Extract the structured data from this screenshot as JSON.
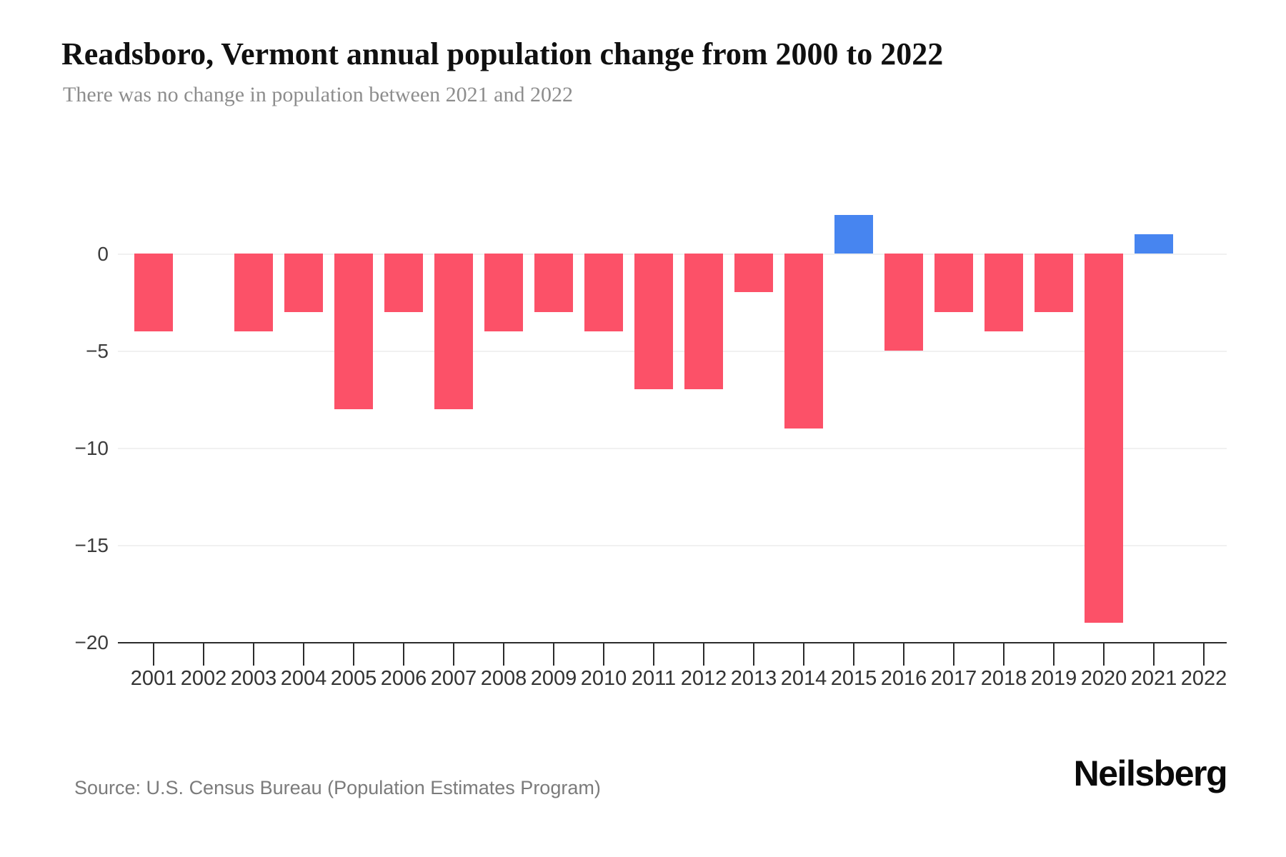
{
  "header": {
    "title": "Readsboro, Vermont annual population change from 2000 to 2022",
    "subtitle": "There was no change in population between 2021 and 2022"
  },
  "chart_data": {
    "type": "bar",
    "title": "Readsboro, Vermont annual population change from 2000 to 2022",
    "subtitle": "There was no change in population between 2021 and 2022",
    "categories": [
      "2001",
      "2002",
      "2003",
      "2004",
      "2005",
      "2006",
      "2007",
      "2008",
      "2009",
      "2010",
      "2011",
      "2012",
      "2013",
      "2014",
      "2015",
      "2016",
      "2017",
      "2018",
      "2019",
      "2020",
      "2021",
      "2022"
    ],
    "values": [
      -4,
      0,
      -4,
      -3,
      -8,
      -3,
      -8,
      -4,
      -3,
      -4,
      -7,
      -7,
      -2,
      -9,
      2,
      -5,
      -3,
      -4,
      -3,
      -19,
      1,
      0
    ],
    "xlabel": "",
    "ylabel": "",
    "ylim": [
      -20,
      3
    ],
    "yticks": [
      0,
      -5,
      -10,
      -15,
      -20
    ],
    "ytick_labels": [
      "0",
      "−5",
      "−10",
      "−15",
      "−20"
    ],
    "grid": "horizontal",
    "legend": "none",
    "colors": {
      "positive": "#4785F0",
      "negative": "#FC5168"
    }
  },
  "footer": {
    "source": "Source: U.S. Census Bureau (Population Estimates Program)",
    "logo": "Neilsberg"
  }
}
